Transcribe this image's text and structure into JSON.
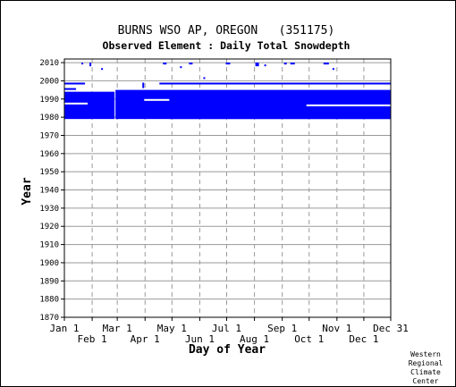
{
  "chart_data": {
    "type": "scatter",
    "title": "BURNS WSO AP, OREGON   (351175)",
    "subtitle": "Observed Element : Daily Total Snowdepth",
    "xlabel": "Day of Year",
    "ylabel": "Year",
    "xlim": [
      1,
      365
    ],
    "ylim": [
      1870,
      2012
    ],
    "y_ticks": [
      1870,
      1880,
      1890,
      1900,
      1910,
      1920,
      1930,
      1940,
      1950,
      1960,
      1970,
      1980,
      1990,
      2000,
      2010
    ],
    "x_ticks_upper": [
      {
        "day": 1,
        "label": "Jan 1"
      },
      {
        "day": 60,
        "label": "Mar 1"
      },
      {
        "day": 121,
        "label": "May 1"
      },
      {
        "day": 182,
        "label": "Jul 1"
      },
      {
        "day": 244,
        "label": "Sep 1"
      },
      {
        "day": 305,
        "label": "Nov 1"
      },
      {
        "day": 365,
        "label": "Dec 31"
      }
    ],
    "x_ticks_lower": [
      {
        "day": 32,
        "label": "Feb 1"
      },
      {
        "day": 91,
        "label": "Apr 1"
      },
      {
        "day": 152,
        "label": "Jun 1"
      },
      {
        "day": 213,
        "label": "Aug 1"
      },
      {
        "day": 274,
        "label": "Oct 1"
      },
      {
        "day": 335,
        "label": "Dec 1"
      }
    ],
    "grid": true,
    "color": "#0000ff",
    "series": [
      {
        "values": [
          {
            "x0": 1,
            "x1": 57,
            "y0": 1979,
            "y1": 1994
          },
          {
            "x0": 58,
            "x1": 365,
            "y0": 1979,
            "y1": 1995
          },
          {
            "x0": 118,
            "x1": 365,
            "y0": 1979,
            "y1": 1980
          },
          {
            "x0": 1,
            "x1": 24,
            "y0": 1998,
            "y1": 1999
          },
          {
            "x0": 1,
            "x1": 14,
            "y0": 1995,
            "y1": 1996
          },
          {
            "x0": 107,
            "x1": 365,
            "y0": 1998,
            "y1": 1999
          },
          {
            "x0": 330,
            "x1": 365,
            "y0": 1993,
            "y1": 1994
          },
          {
            "x0": 88,
            "x1": 90,
            "y0": 1996,
            "y1": 1999
          },
          {
            "x0": 20,
            "x1": 22,
            "y0": 2009,
            "y1": 2010
          },
          {
            "x0": 29,
            "x1": 31,
            "y0": 2008,
            "y1": 2010
          },
          {
            "x0": 42,
            "x1": 44,
            "y0": 2006,
            "y1": 2007
          },
          {
            "x0": 111,
            "x1": 115,
            "y0": 2009,
            "y1": 2010
          },
          {
            "x0": 130,
            "x1": 132,
            "y0": 2007,
            "y1": 2008
          },
          {
            "x0": 140,
            "x1": 144,
            "y0": 2009,
            "y1": 2010
          },
          {
            "x0": 156,
            "x1": 158,
            "y0": 2001,
            "y1": 2002
          },
          {
            "x0": 181,
            "x1": 186,
            "y0": 2009,
            "y1": 2010
          },
          {
            "x0": 214,
            "x1": 218,
            "y0": 2008,
            "y1": 2010
          },
          {
            "x0": 224,
            "x1": 226,
            "y0": 2008,
            "y1": 2009
          },
          {
            "x0": 246,
            "x1": 249,
            "y0": 2009,
            "y1": 2010
          },
          {
            "x0": 253,
            "x1": 258,
            "y0": 2009,
            "y1": 2010
          },
          {
            "x0": 290,
            "x1": 296,
            "y0": 2009,
            "y1": 2010
          },
          {
            "x0": 300,
            "x1": 302,
            "y0": 2006,
            "y1": 2007
          }
        ]
      }
    ],
    "gaps": [
      {
        "x0": 1,
        "x1": 27,
        "y0": 1987,
        "y1": 1988
      },
      {
        "x0": 90,
        "x1": 118,
        "y0": 1989,
        "y1": 1990
      },
      {
        "x0": 271,
        "x1": 365,
        "y0": 1986,
        "y1": 1987
      }
    ]
  },
  "credit": [
    "Western",
    "Regional",
    "Climate",
    "Center"
  ]
}
